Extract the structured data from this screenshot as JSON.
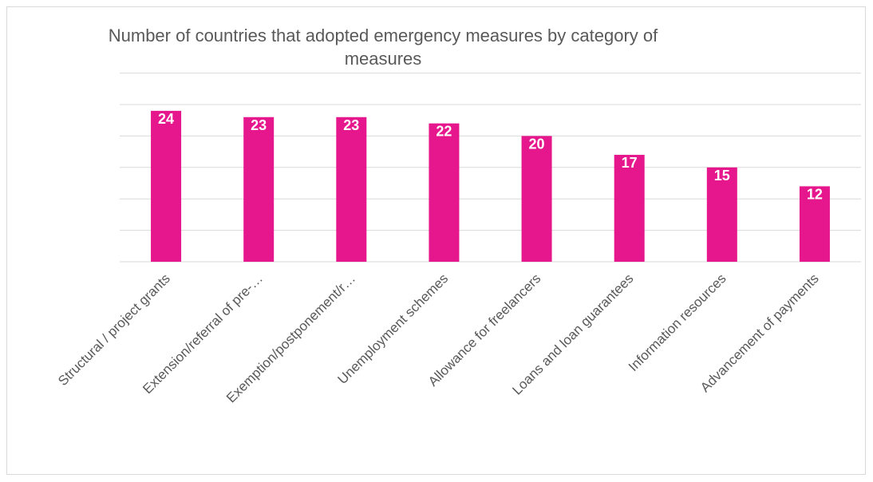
{
  "chart_data": {
    "type": "bar",
    "title": "Number of countries that adopted emergency measures by category of measures",
    "categories": [
      "Structural / project grants",
      "Extension/referral of pre-…",
      "Exemption/postponement/r…",
      "Unemployment schemes",
      "Allowance for freelancers",
      "Loans and loan guarantees",
      "Information resources",
      "Advancement of payments"
    ],
    "values": [
      24,
      23,
      23,
      22,
      20,
      17,
      15,
      12
    ],
    "ylim": [
      0,
      25
    ],
    "grid": true,
    "legend": "none",
    "bar_color": "#e6168c",
    "data_labels": true
  }
}
